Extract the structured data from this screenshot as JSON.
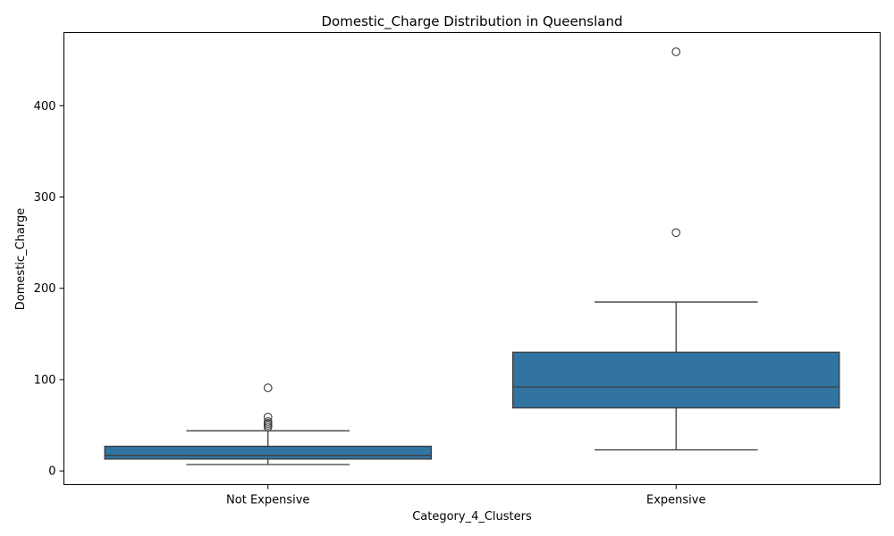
{
  "chart_data": {
    "type": "boxplot",
    "title": "Domestic_Charge Distribution in Queensland",
    "xlabel": "Category_4_Clusters",
    "ylabel": "Domestic_Charge",
    "ylim": [
      -15,
      480
    ],
    "yticks": [
      0,
      100,
      200,
      300,
      400
    ],
    "grid": false,
    "categories": [
      "Not Expensive",
      "Expensive"
    ],
    "boxes": [
      {
        "category": "Not Expensive",
        "whisker_low": 7,
        "q1": 13,
        "median": 17,
        "q3": 27,
        "whisker_high": 44,
        "outliers": [
          48,
          50,
          52,
          54,
          59,
          91
        ]
      },
      {
        "category": "Expensive",
        "whisker_low": 23,
        "q1": 69,
        "median": 92,
        "q3": 130,
        "whisker_high": 185,
        "outliers": [
          261,
          459
        ]
      }
    ],
    "colors": {
      "box": "#3274a1",
      "line": "#3d3d3d",
      "axis": "#000000"
    }
  }
}
